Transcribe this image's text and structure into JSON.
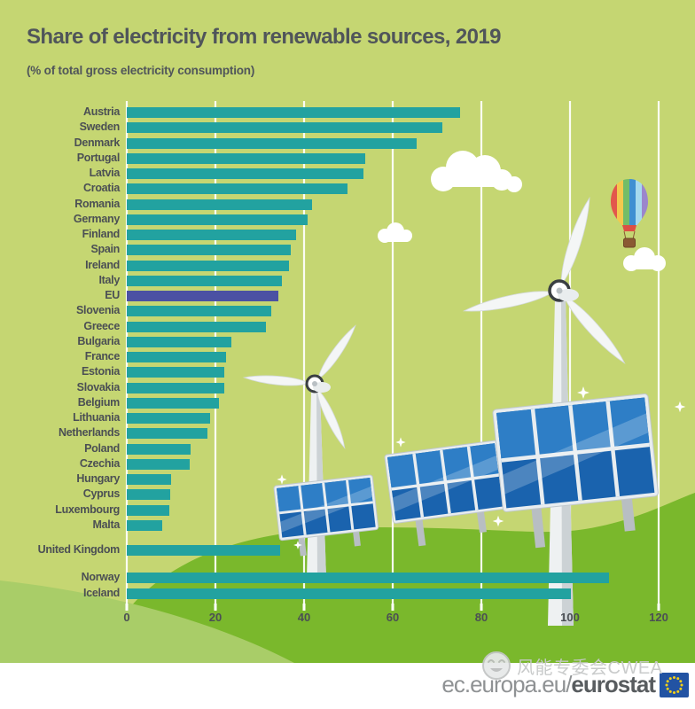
{
  "title": "Share of electricity from renewable sources, 2019",
  "subtitle": "(% of total gross electricity consumption)",
  "chart_data": {
    "type": "bar",
    "orientation": "horizontal",
    "unit": "% of total gross electricity consumption",
    "title": "Share of electricity from renewable sources, 2019",
    "xlabel": "",
    "ylabel": "",
    "xlim": [
      0,
      120
    ],
    "xticks": [
      0,
      20,
      40,
      60,
      80,
      100,
      120
    ],
    "grid": true,
    "categories": [
      "Austria",
      "Sweden",
      "Denmark",
      "Portugal",
      "Latvia",
      "Croatia",
      "Romania",
      "Germany",
      "Finland",
      "Spain",
      "Ireland",
      "Italy",
      "EU",
      "Slovenia",
      "Greece",
      "Bulgaria",
      "France",
      "Estonia",
      "Slovakia",
      "Belgium",
      "Lithuania",
      "Netherlands",
      "Poland",
      "Czechia",
      "Hungary",
      "Cyprus",
      "Luxembourg",
      "Malta",
      "United Kingdom",
      "Norway",
      "Iceland"
    ],
    "values": [
      75.1,
      71.2,
      65.4,
      53.8,
      53.4,
      49.8,
      41.7,
      40.8,
      38.1,
      36.9,
      36.5,
      35.0,
      34.1,
      32.6,
      31.3,
      23.5,
      22.4,
      22.0,
      21.9,
      20.8,
      18.8,
      18.2,
      14.4,
      14.1,
      10.0,
      9.8,
      9.5,
      8.0,
      34.6,
      108.7,
      100.2
    ],
    "highlight_category": "EU",
    "separators_after": [
      "Malta",
      "United Kingdom"
    ],
    "bar_color": "#22a2a0",
    "highlight_color": "#4b51a3",
    "legend_position": "none"
  },
  "illustration": {
    "elements": [
      "green-hills",
      "clouds",
      "hot-air-balloon",
      "wind-turbine-small",
      "wind-turbine-large",
      "solar-panels",
      "sparkles"
    ],
    "colors": {
      "sky": "#c5d672",
      "hill_light": "#a9cd68",
      "hill_green": "#7ab82c",
      "panel_blue": "#1a63ae",
      "panel_blue_light": "#2e7ec6",
      "turbine_white": "#f4f6f6",
      "gridline": "#ffffff"
    }
  },
  "footer": {
    "url_regular": "ec.europa.eu/",
    "url_bold": "eurostat",
    "logo": "eu-flag-logo",
    "flag_blue": "#2253a3",
    "star_yellow": "#f7d117"
  },
  "watermark": {
    "icon": "smiley-icon",
    "text": "风能专委会CWEA"
  }
}
